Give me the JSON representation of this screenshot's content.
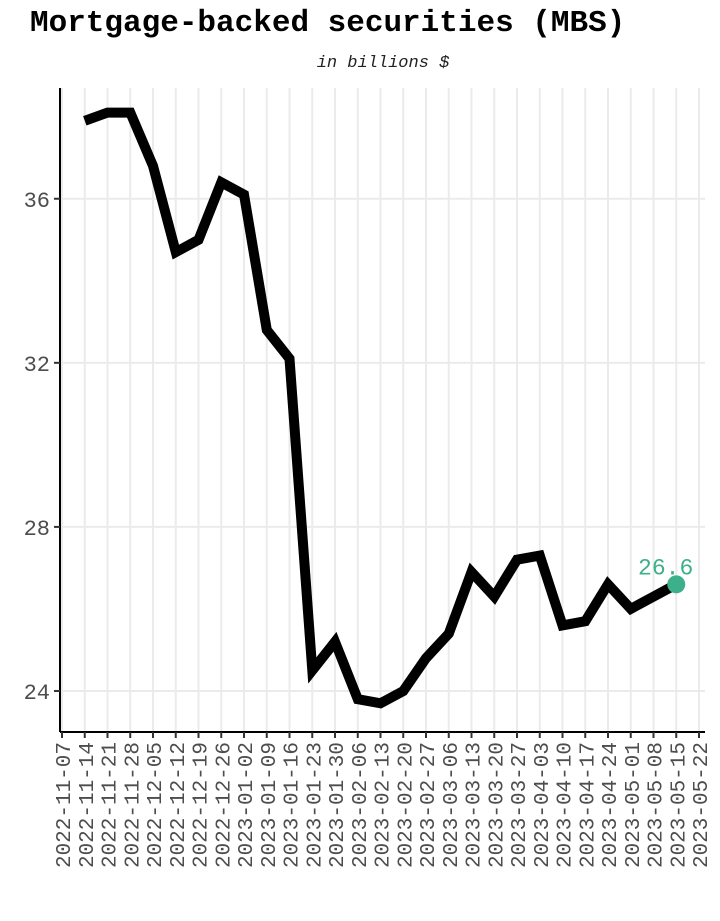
{
  "chart_data": {
    "type": "line",
    "title": "Mortgage-backed securities (MBS)",
    "subtitle": "in billions $",
    "xlabel": "",
    "ylabel": "",
    "x": [
      "2022-11-14",
      "2022-11-21",
      "2022-11-28",
      "2022-12-05",
      "2022-12-12",
      "2022-12-19",
      "2022-12-26",
      "2023-01-02",
      "2023-01-09",
      "2023-01-16",
      "2023-01-23",
      "2023-01-30",
      "2023-02-06",
      "2023-02-13",
      "2023-02-20",
      "2023-02-27",
      "2023-03-06",
      "2023-03-13",
      "2023-03-20",
      "2023-03-27",
      "2023-04-03",
      "2023-04-10",
      "2023-04-17",
      "2023-04-24",
      "2023-05-01",
      "2023-05-08",
      "2023-05-15"
    ],
    "values": [
      37.9,
      38.1,
      38.1,
      36.8,
      34.7,
      35.0,
      36.4,
      36.1,
      32.8,
      32.1,
      24.5,
      25.2,
      23.8,
      23.7,
      24.0,
      24.8,
      25.4,
      26.9,
      26.3,
      27.2,
      27.3,
      25.6,
      25.7,
      26.6,
      26.0,
      26.3,
      26.6
    ],
    "x_ticks": [
      "2022-11-07",
      "2022-11-14",
      "2022-11-21",
      "2022-11-28",
      "2022-12-05",
      "2022-12-12",
      "2022-12-19",
      "2022-12-26",
      "2023-01-02",
      "2023-01-09",
      "2023-01-16",
      "2023-01-23",
      "2023-01-30",
      "2023-02-06",
      "2023-02-13",
      "2023-02-20",
      "2023-02-27",
      "2023-03-06",
      "2023-03-13",
      "2023-03-20",
      "2023-03-27",
      "2023-04-03",
      "2023-04-10",
      "2023-04-17",
      "2023-04-24",
      "2023-05-01",
      "2023-05-08",
      "2023-05-15",
      "2023-05-22"
    ],
    "y_ticks": [
      24,
      28,
      32,
      36
    ],
    "ylim": [
      23,
      38.7
    ],
    "xlim": [
      "2022-11-07",
      "2022-05-22"
    ],
    "grid": true,
    "last_point": {
      "x": "2023-05-15",
      "value": 26.6,
      "label": "26.6",
      "color": "#3cb08a"
    },
    "line_color": "#000000"
  }
}
